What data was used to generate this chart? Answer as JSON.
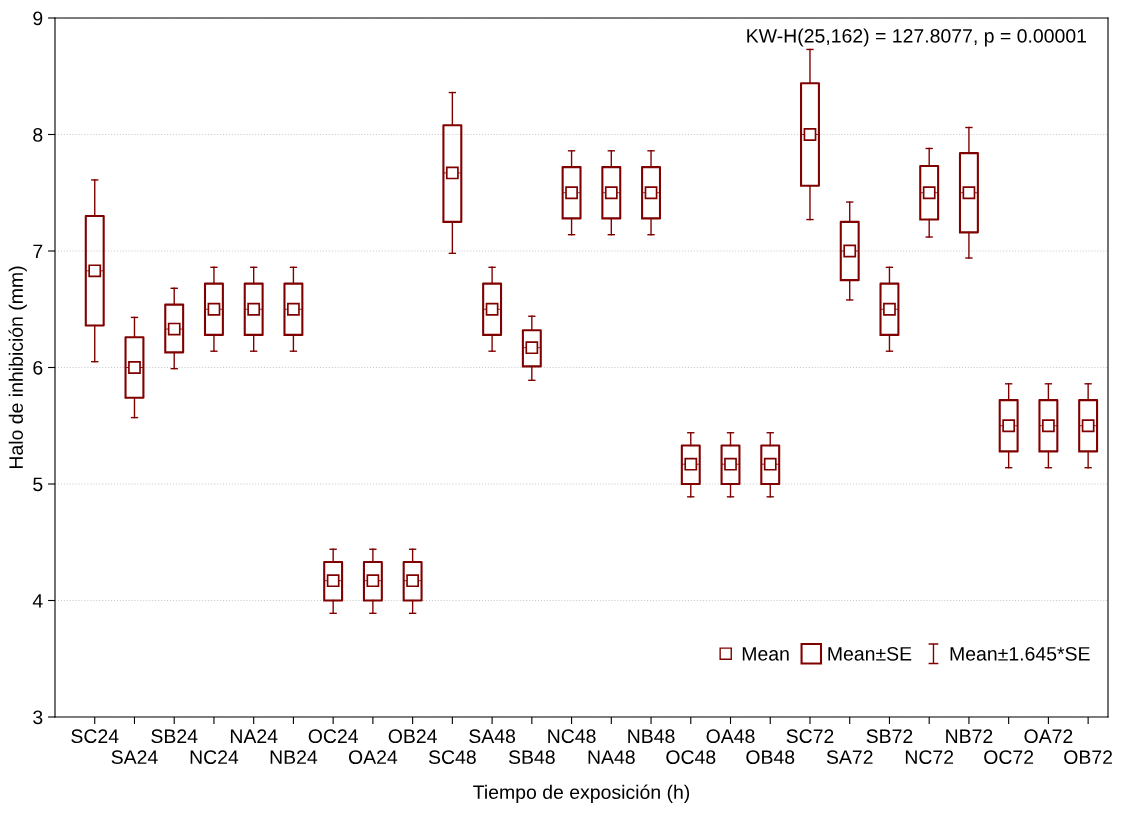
{
  "chart_data": {
    "type": "box",
    "xlabel": "Tiempo de exposición (h)",
    "ylabel": "Halo de inhibición (mm)",
    "annotations": [
      "KW-H(25,162) = 127.8077, p = 0.00001",
      "Mean±SE",
      "Mean±1.645*SE"
    ],
    "categories": [
      "SC24",
      "SA24",
      "SB24",
      "NC24",
      "NA24",
      "NB24",
      "OC24",
      "OA24",
      "OB24",
      "SC48",
      "SA48",
      "SB48",
      "NC48",
      "NA48",
      "NB48",
      "OC48",
      "OA48",
      "OB48",
      "SC72",
      "SA72",
      "SB72",
      "NC72",
      "NB72",
      "OC72",
      "OA72",
      "OB72"
    ],
    "series": [
      {
        "name": "Mean",
        "color": "#800000",
        "boxes": [
          {
            "low": 6.05,
            "q1": 6.36,
            "median": 6.83,
            "mean": 6.83,
            "q3": 7.3,
            "high": 7.61
          },
          {
            "low": 5.57,
            "q1": 5.74,
            "median": 6.0,
            "mean": 6.0,
            "q3": 6.26,
            "high": 6.43
          },
          {
            "low": 5.99,
            "q1": 6.13,
            "median": 6.33,
            "mean": 6.33,
            "q3": 6.54,
            "high": 6.68
          },
          {
            "low": 6.14,
            "q1": 6.28,
            "median": 6.5,
            "mean": 6.5,
            "q3": 6.72,
            "high": 6.86
          },
          {
            "low": 6.14,
            "q1": 6.28,
            "median": 6.5,
            "mean": 6.5,
            "q3": 6.72,
            "high": 6.86
          },
          {
            "low": 6.14,
            "q1": 6.28,
            "median": 6.5,
            "mean": 6.5,
            "q3": 6.72,
            "high": 6.86
          },
          {
            "low": 3.89,
            "q1": 4.0,
            "median": 4.17,
            "mean": 4.17,
            "q3": 4.33,
            "high": 4.44
          },
          {
            "low": 3.89,
            "q1": 4.0,
            "median": 4.17,
            "mean": 4.17,
            "q3": 4.33,
            "high": 4.44
          },
          {
            "low": 3.89,
            "q1": 4.0,
            "median": 4.17,
            "mean": 4.17,
            "q3": 4.33,
            "high": 4.44
          },
          {
            "low": 6.98,
            "q1": 7.25,
            "median": 7.67,
            "mean": 7.67,
            "q3": 8.08,
            "high": 8.36
          },
          {
            "low": 6.14,
            "q1": 6.28,
            "median": 6.5,
            "mean": 6.5,
            "q3": 6.72,
            "high": 6.86
          },
          {
            "low": 5.89,
            "q1": 6.01,
            "median": 6.17,
            "mean": 6.17,
            "q3": 6.32,
            "high": 6.44
          },
          {
            "low": 7.14,
            "q1": 7.28,
            "median": 7.5,
            "mean": 7.5,
            "q3": 7.72,
            "high": 7.86
          },
          {
            "low": 7.14,
            "q1": 7.28,
            "median": 7.5,
            "mean": 7.5,
            "q3": 7.72,
            "high": 7.86
          },
          {
            "low": 7.14,
            "q1": 7.28,
            "median": 7.5,
            "mean": 7.5,
            "q3": 7.72,
            "high": 7.86
          },
          {
            "low": 4.89,
            "q1": 5.0,
            "median": 5.17,
            "mean": 5.17,
            "q3": 5.33,
            "high": 5.44
          },
          {
            "low": 4.89,
            "q1": 5.0,
            "median": 5.17,
            "mean": 5.17,
            "q3": 5.33,
            "high": 5.44
          },
          {
            "low": 4.89,
            "q1": 5.0,
            "median": 5.17,
            "mean": 5.17,
            "q3": 5.33,
            "high": 5.44
          },
          {
            "low": 7.27,
            "q1": 7.56,
            "median": 8.0,
            "mean": 8.0,
            "q3": 8.44,
            "high": 8.73
          },
          {
            "low": 6.58,
            "q1": 6.75,
            "median": 7.0,
            "mean": 7.0,
            "q3": 7.25,
            "high": 7.42
          },
          {
            "low": 6.14,
            "q1": 6.28,
            "median": 6.5,
            "mean": 6.5,
            "q3": 6.72,
            "high": 6.86
          },
          {
            "low": 7.12,
            "q1": 7.27,
            "median": 7.5,
            "mean": 7.5,
            "q3": 7.73,
            "high": 7.88
          },
          {
            "low": 6.94,
            "q1": 7.16,
            "median": 7.5,
            "mean": 7.5,
            "q3": 7.84,
            "high": 8.06
          },
          {
            "low": 5.14,
            "q1": 5.28,
            "median": 5.5,
            "mean": 5.5,
            "q3": 5.72,
            "high": 5.86
          },
          {
            "low": 5.14,
            "q1": 5.28,
            "median": 5.5,
            "mean": 5.5,
            "q3": 5.72,
            "high": 5.86
          },
          {
            "low": 5.14,
            "q1": 5.28,
            "median": 5.5,
            "mean": 5.5,
            "q3": 5.72,
            "high": 5.86
          }
        ]
      }
    ],
    "ylim": [
      3,
      9
    ],
    "yticks": [
      3,
      4,
      5,
      6,
      7,
      8,
      9
    ],
    "grid": "y",
    "legend": "bottom right",
    "marker": "square"
  }
}
